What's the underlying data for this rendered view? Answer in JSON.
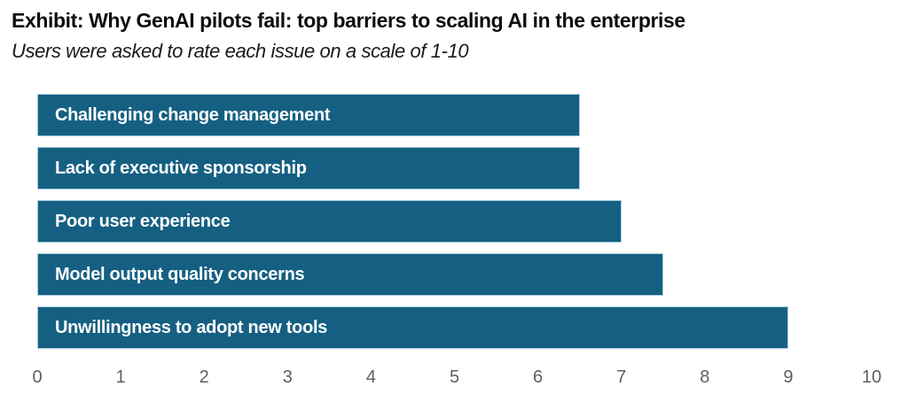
{
  "header": {
    "title": "Exhibit: Why GenAI pilots fail: top barriers to scaling AI in the enterprise",
    "subtitle": "Users were asked to rate each issue on a scale of 1-10"
  },
  "chart_data": {
    "type": "bar",
    "orientation": "horizontal",
    "title": "Exhibit: Why GenAI pilots fail: top barriers to scaling AI in the enterprise",
    "subtitle": "Users were asked to rate each issue on a scale of 1-10",
    "categories": [
      "Challenging change management",
      "Lack of executive sponsorship",
      "Poor user experience",
      "Model output quality concerns",
      "Unwillingness to adopt new tools"
    ],
    "values": [
      6.5,
      6.5,
      7,
      7.5,
      9
    ],
    "xlabel": "",
    "ylabel": "",
    "xlim": [
      0,
      10
    ],
    "x_ticks": [
      0,
      1,
      2,
      3,
      4,
      5,
      6,
      7,
      8,
      9,
      10
    ],
    "grid": false,
    "legend": false,
    "label_position": "inside-left",
    "colors": {
      "bar_fill": "#156082",
      "bar_border": "#a6c9dc",
      "bar_label": "#ffffff",
      "axis_label": "#5f5f5f",
      "title": "#0d0d0d",
      "subtitle": "#1a1a1a",
      "background": "#ffffff"
    }
  }
}
